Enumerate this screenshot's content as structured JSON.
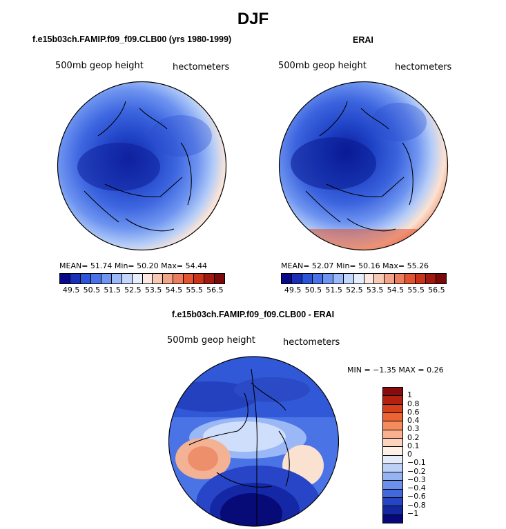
{
  "title": "DJF",
  "panels": {
    "left": {
      "title": "f.e15b03ch.FAMIP.f09_f09.CLB00 (yrs 1980-1999)",
      "variable": "500mb geop height",
      "units": "hectometers",
      "stats": "MEAN=   51.74   Min=   50.20   Max=   54.44"
    },
    "right": {
      "title": "ERAI",
      "variable": "500mb geop height",
      "units": "hectometers",
      "stats": "MEAN=   52.07   Min=   50.16   Max=   55.26"
    },
    "diff": {
      "title": "f.e15b03ch.FAMIP.f09_f09.CLB00 - ERAI",
      "variable": "500mb geop height",
      "units": "hectometers",
      "stats": "MIN =   −1.35  MAX =    0.26"
    }
  },
  "colorbar_main": {
    "labels": [
      "49.5",
      "50.5",
      "51.5",
      "52.5",
      "53.5",
      "54.5",
      "55.5",
      "56.5"
    ],
    "colors": [
      "#08088a",
      "#1a2fb8",
      "#2c54d8",
      "#4a72e8",
      "#6f95f2",
      "#9bb9f8",
      "#c3d6fb",
      "#e6eefd",
      "#fbe8e0",
      "#f7c9b5",
      "#f2a488",
      "#ec7d5c",
      "#e2542f",
      "#c9331a",
      "#a0190f",
      "#7a0a0a"
    ]
  },
  "colorbar_diff": {
    "labels": [
      "1",
      "0.8",
      "0.6",
      "0.4",
      "0.3",
      "0.2",
      "0.1",
      "0",
      "−0.1",
      "−0.2",
      "−0.3",
      "−0.4",
      "−0.6",
      "−0.8",
      "−1"
    ],
    "colors": [
      "#8a0b0b",
      "#b3220f",
      "#d6401c",
      "#ec6433",
      "#f58a5c",
      "#f8b08f",
      "#fbd3bf",
      "#fdf0e6",
      "#e4ecfb",
      "#bdd1f8",
      "#95b3f2",
      "#6b8fea",
      "#4368dc",
      "#2645c4",
      "#1328a0",
      "#07077c"
    ]
  }
}
